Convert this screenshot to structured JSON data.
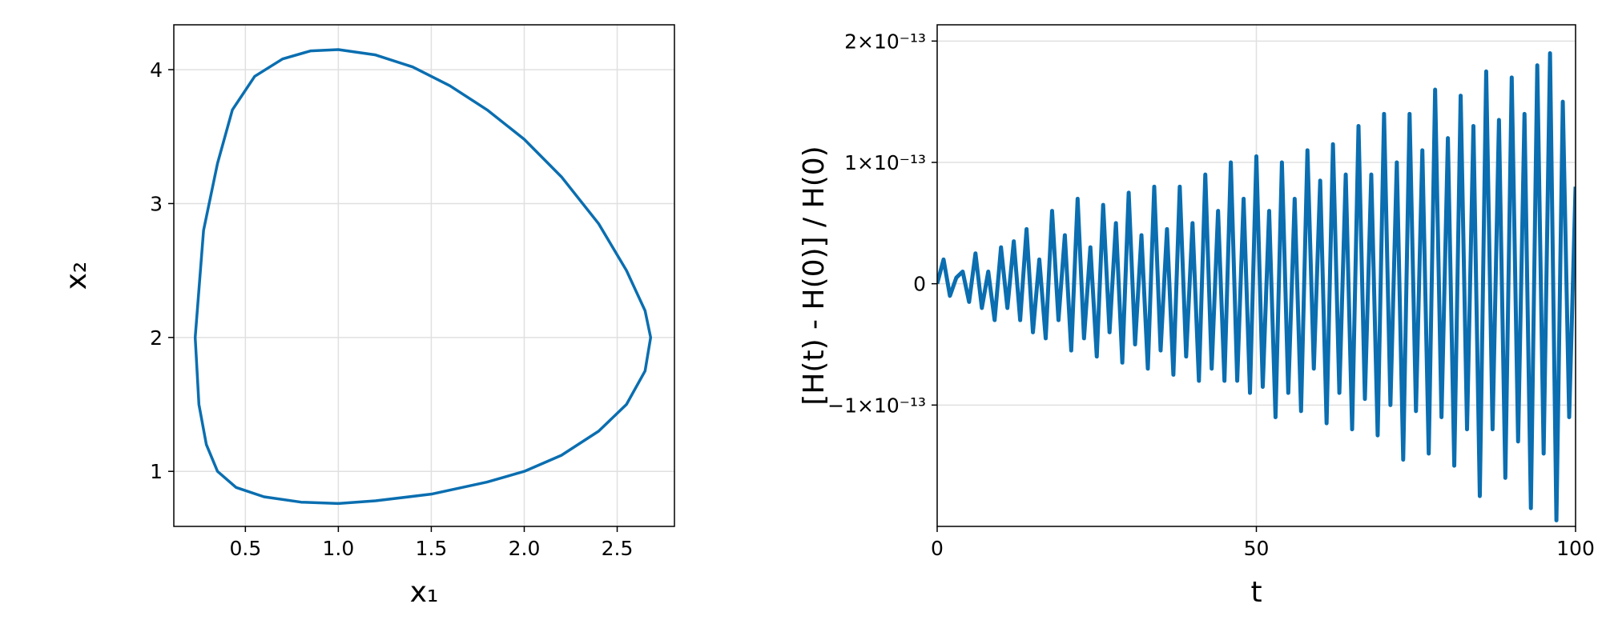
{
  "chart_data": [
    {
      "type": "line",
      "xlabel": "x₁",
      "ylabel": "x₂",
      "grid": true,
      "xlim": [
        0.115,
        2.808
      ],
      "ylim": [
        0.589,
        4.335
      ],
      "xticks": [
        0.5,
        {
          "value": 1,
          "label": "1.0"
        },
        1.5,
        {
          "value": 2,
          "label": "2.0"
        },
        2.5
      ],
      "yticks": [
        1,
        2,
        3,
        4
      ],
      "series": [
        {
          "color": "#0a6eb0",
          "x": [
            0.23,
            0.275,
            0.35,
            0.43,
            0.55,
            0.7,
            0.85,
            1.0,
            1.2,
            1.4,
            1.6,
            1.8,
            2.0,
            2.2,
            2.4,
            2.55,
            2.65,
            2.68,
            2.65,
            2.55,
            2.4,
            2.2,
            2.0,
            1.8,
            1.5,
            1.2,
            1.0,
            0.8,
            0.6,
            0.45,
            0.35,
            0.29,
            0.25,
            0.23
          ],
          "values": [
            2.0,
            2.8,
            3.3,
            3.7,
            3.95,
            4.08,
            4.14,
            4.15,
            4.11,
            4.02,
            3.88,
            3.7,
            3.48,
            3.2,
            2.85,
            2.5,
            2.2,
            2.0,
            1.75,
            1.5,
            1.3,
            1.12,
            1.0,
            0.92,
            0.83,
            0.78,
            0.76,
            0.77,
            0.81,
            0.88,
            1.0,
            1.2,
            1.5,
            2.0
          ]
        }
      ]
    },
    {
      "type": "line",
      "xlabel": "t",
      "ylabel": "[H(t) - H(0)] / H(0)",
      "grid": true,
      "xlim": [
        0,
        100
      ],
      "ylim": [
        -2e-13,
        2.134e-13
      ],
      "xticks": [
        0,
        50,
        100
      ],
      "yticks": [
        {
          "value": -1e-13,
          "label": "−1×10⁻¹³"
        },
        0,
        {
          "value": 1e-13,
          "label": "1×10⁻¹³"
        },
        {
          "value": 2e-13,
          "label": "2×10⁻¹³"
        }
      ],
      "series": [
        {
          "color": "#0a6eb0",
          "x": [
            0,
            1,
            2,
            3,
            4,
            5,
            6,
            7,
            8,
            9,
            10,
            11,
            12,
            13,
            14,
            15,
            16,
            17,
            18,
            19,
            20,
            21,
            22,
            23,
            24,
            25,
            26,
            27,
            28,
            29,
            30,
            31,
            32,
            33,
            34,
            35,
            36,
            37,
            38,
            39,
            40,
            41,
            42,
            43,
            44,
            45,
            46,
            47,
            48,
            49,
            50,
            51,
            52,
            53,
            54,
            55,
            56,
            57,
            58,
            59,
            60,
            61,
            62,
            63,
            64,
            65,
            66,
            67,
            68,
            69,
            70,
            71,
            72,
            73,
            74,
            75,
            76,
            77,
            78,
            79,
            80,
            81,
            82,
            83,
            84,
            85,
            86,
            87,
            88,
            89,
            90,
            91,
            92,
            93,
            94,
            95,
            96,
            97,
            98,
            99,
            100
          ],
          "values": [
            0,
            2e-14,
            -1e-14,
            5e-15,
            1e-14,
            -1.5e-14,
            2.5e-14,
            -2e-14,
            1e-14,
            -3e-14,
            3e-14,
            -2e-14,
            3.5e-14,
            -3e-14,
            4.5e-14,
            -4e-14,
            2e-14,
            -4.5e-14,
            6e-14,
            -3e-14,
            4e-14,
            -5.5e-14,
            7e-14,
            -4.5e-14,
            3e-14,
            -6e-14,
            6.5e-14,
            -4e-14,
            5e-14,
            -6.5e-14,
            7.5e-14,
            -5e-14,
            4e-14,
            -7e-14,
            8e-14,
            -5.5e-14,
            4.5e-14,
            -7.5e-14,
            8e-14,
            -6e-14,
            5e-14,
            -8e-14,
            9e-14,
            -7e-14,
            6e-14,
            -8e-14,
            1e-13,
            -8e-14,
            7e-14,
            -9e-14,
            1.05e-13,
            -8.5e-14,
            6e-14,
            -1.1e-13,
            1e-13,
            -9e-14,
            7e-14,
            -1.05e-13,
            1.1e-13,
            -7e-14,
            8.5e-14,
            -1.15e-13,
            1.15e-13,
            -9e-14,
            9e-14,
            -1.2e-13,
            1.3e-13,
            -9.5e-14,
            9e-14,
            -1.25e-13,
            1.4e-13,
            -1e-13,
            1e-13,
            -1.45e-13,
            1.4e-13,
            -1.05e-13,
            1.1e-13,
            -1.4e-13,
            1.6e-13,
            -1.1e-13,
            1.2e-13,
            -1.5e-13,
            1.55e-13,
            -1.2e-13,
            1.3e-13,
            -1.75e-13,
            1.75e-13,
            -1.2e-13,
            1.35e-13,
            -1.6e-13,
            1.7e-13,
            -1.3e-13,
            1.4e-13,
            -1.85e-13,
            1.8e-13,
            -1.4e-13,
            1.9e-13,
            -1.95e-13,
            1.5e-13,
            -1.1e-13,
            8e-14
          ]
        }
      ]
    }
  ]
}
